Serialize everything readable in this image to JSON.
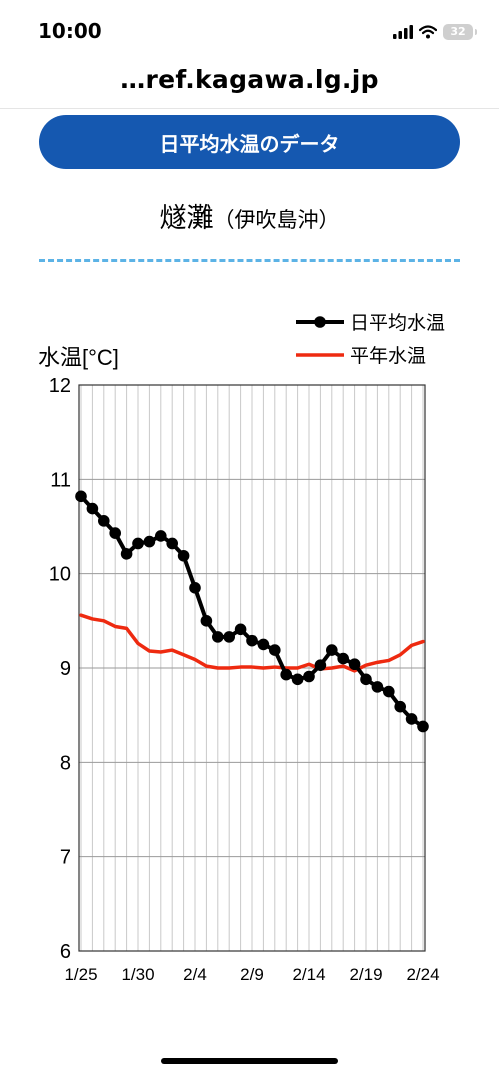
{
  "status_bar": {
    "time": "10:00",
    "battery": "32"
  },
  "browser": {
    "url": "…ref.kagawa.lg.jp"
  },
  "header": {
    "button_label": "日平均水温のデータ"
  },
  "location": {
    "name": "燧灘",
    "area": "（伊吹島沖）"
  },
  "chart_data": {
    "type": "line",
    "title": "",
    "ylabel": "水温[°C]",
    "xlabel": "",
    "ylim": [
      6,
      12
    ],
    "yticks": [
      6,
      7,
      8,
      9,
      10,
      11,
      12
    ],
    "grid": true,
    "legend_position": "top-right",
    "x_tick_labels": [
      "1/25",
      "1/30",
      "2/4",
      "2/9",
      "2/14",
      "2/19",
      "2/24"
    ],
    "x": [
      "1/25",
      "1/26",
      "1/27",
      "1/28",
      "1/29",
      "1/30",
      "1/31",
      "2/1",
      "2/2",
      "2/3",
      "2/4",
      "2/5",
      "2/6",
      "2/7",
      "2/8",
      "2/9",
      "2/10",
      "2/11",
      "2/12",
      "2/13",
      "2/14",
      "2/15",
      "2/16",
      "2/17",
      "2/18",
      "2/19",
      "2/20",
      "2/21",
      "2/22",
      "2/23",
      "2/24"
    ],
    "series": [
      {
        "name": "日平均水温",
        "color": "#000000",
        "markers": true,
        "values": [
          10.82,
          10.69,
          10.56,
          10.43,
          10.21,
          10.32,
          10.34,
          10.4,
          10.32,
          10.19,
          9.85,
          9.5,
          9.33,
          9.33,
          9.41,
          9.29,
          9.25,
          9.19,
          8.93,
          8.88,
          8.91,
          9.03,
          9.19,
          9.1,
          9.04,
          8.88,
          8.8,
          8.75,
          8.59,
          8.46,
          8.38
        ]
      },
      {
        "name": "平年水温",
        "color": "#ee2a10",
        "markers": false,
        "values": [
          9.56,
          9.52,
          9.5,
          9.44,
          9.42,
          9.26,
          9.18,
          9.17,
          9.19,
          9.14,
          9.09,
          9.02,
          9.0,
          9.0,
          9.01,
          9.01,
          9.0,
          9.01,
          9.0,
          9.0,
          9.04,
          8.99,
          9.0,
          9.02,
          8.97,
          9.03,
          9.06,
          9.08,
          9.14,
          9.24,
          9.28
        ]
      }
    ]
  }
}
